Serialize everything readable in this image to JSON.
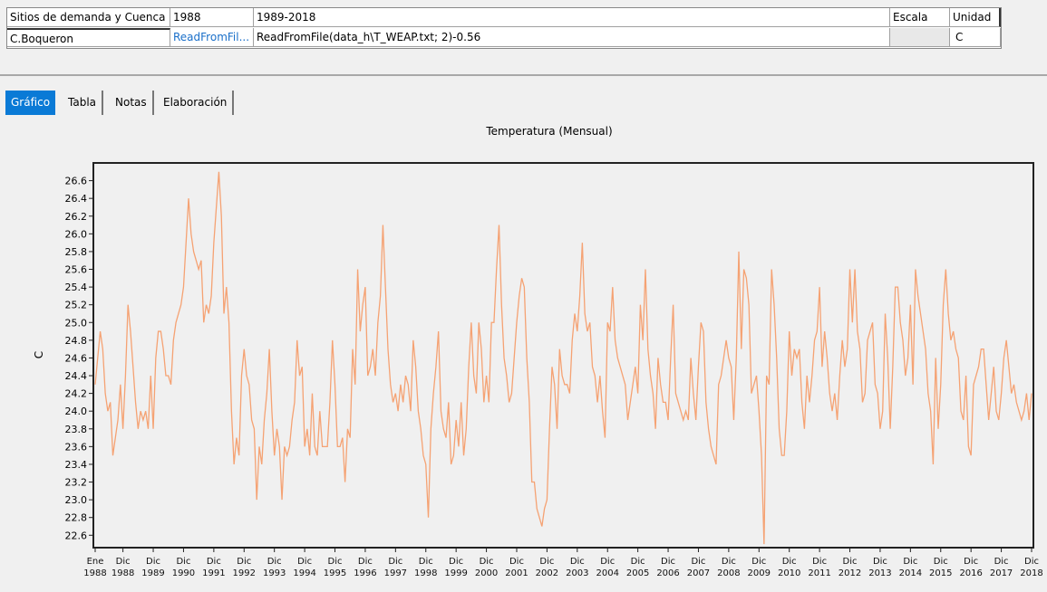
{
  "table": {
    "headers": [
      "Sitios de demanda y Cuenca",
      "1988",
      "1989-2018",
      "Escala",
      "Unidad"
    ],
    "row": {
      "name": "C.Boqueron",
      "link": "ReadFromFil...",
      "expression": "ReadFromFile(data_h\\T_WEAP.txt; 2)-0.56",
      "unit": "C"
    }
  },
  "tabs": [
    "Gráfico",
    "Tabla",
    "Notas",
    "Elaboración"
  ],
  "chart_data": {
    "type": "line",
    "title": "Temperatura (Mensual)",
    "ylabel": "C",
    "color": "#f5a273",
    "ylim": [
      22.46,
      26.8
    ],
    "yticks": [
      22.6,
      22.8,
      {
        "value": 23,
        "label": "23.0"
      },
      23.2,
      23.4,
      23.6,
      23.8,
      {
        "value": 24,
        "label": "24.0"
      },
      24.2,
      24.4,
      24.6,
      24.8,
      {
        "value": 25,
        "label": "25.0"
      },
      25.2,
      25.4,
      25.6,
      25.8,
      {
        "value": 26,
        "label": "26.0"
      },
      26.2,
      26.4,
      26.6
    ],
    "grid": false,
    "categories": [
      "Ene 1988",
      null,
      null,
      null,
      null,
      null,
      null,
      null,
      null,
      null,
      null,
      "Dic 1988",
      null,
      null,
      null,
      null,
      null,
      null,
      null,
      null,
      null,
      null,
      null,
      "Dic 1989",
      null,
      null,
      null,
      null,
      null,
      null,
      null,
      null,
      null,
      null,
      null,
      "Dic 1990",
      null,
      null,
      null,
      null,
      null,
      null,
      null,
      null,
      null,
      null,
      null,
      "Dic 1991",
      null,
      null,
      null,
      null,
      null,
      null,
      null,
      null,
      null,
      null,
      null,
      "Dic 1992",
      null,
      null,
      null,
      null,
      null,
      null,
      null,
      null,
      null,
      null,
      null,
      "Dic 1993",
      null,
      null,
      null,
      null,
      null,
      null,
      null,
      null,
      null,
      null,
      null,
      "Dic 1994",
      null,
      null,
      null,
      null,
      null,
      null,
      null,
      null,
      null,
      null,
      null,
      "Dic 1995",
      null,
      null,
      null,
      null,
      null,
      null,
      null,
      null,
      null,
      null,
      null,
      "Dic 1996",
      null,
      null,
      null,
      null,
      null,
      null,
      null,
      null,
      null,
      null,
      null,
      "Dic 1997",
      null,
      null,
      null,
      null,
      null,
      null,
      null,
      null,
      null,
      null,
      null,
      "Dic 1998",
      null,
      null,
      null,
      null,
      null,
      null,
      null,
      null,
      null,
      null,
      null,
      "Dic 1999",
      null,
      null,
      null,
      null,
      null,
      null,
      null,
      null,
      null,
      null,
      null,
      "Dic 2000",
      null,
      null,
      null,
      null,
      null,
      null,
      null,
      null,
      null,
      null,
      null,
      "Dic 2001",
      null,
      null,
      null,
      null,
      null,
      null,
      null,
      null,
      null,
      null,
      null,
      "Dic 2002",
      null,
      null,
      null,
      null,
      null,
      null,
      null,
      null,
      null,
      null,
      null,
      "Dic 2003",
      null,
      null,
      null,
      null,
      null,
      null,
      null,
      null,
      null,
      null,
      null,
      "Dic 2004",
      null,
      null,
      null,
      null,
      null,
      null,
      null,
      null,
      null,
      null,
      null,
      "Dic 2005",
      null,
      null,
      null,
      null,
      null,
      null,
      null,
      null,
      null,
      null,
      null,
      "Dic 2006",
      null,
      null,
      null,
      null,
      null,
      null,
      null,
      null,
      null,
      null,
      null,
      "Dic 2007",
      null,
      null,
      null,
      null,
      null,
      null,
      null,
      null,
      null,
      null,
      null,
      "Dic 2008",
      null,
      null,
      null,
      null,
      null,
      null,
      null,
      null,
      null,
      null,
      null,
      "Dic 2009",
      null,
      null,
      null,
      null,
      null,
      null,
      null,
      null,
      null,
      null,
      null,
      "Dic 2010",
      null,
      null,
      null,
      null,
      null,
      null,
      null,
      null,
      null,
      null,
      null,
      "Dic 2011",
      null,
      null,
      null,
      null,
      null,
      null,
      null,
      null,
      null,
      null,
      null,
      "Dic 2012",
      null,
      null,
      null,
      null,
      null,
      null,
      null,
      null,
      null,
      null,
      null,
      "Dic 2013",
      null,
      null,
      null,
      null,
      null,
      null,
      null,
      null,
      null,
      null,
      null,
      "Dic 2014",
      null,
      null,
      null,
      null,
      null,
      null,
      null,
      null,
      null,
      null,
      null,
      "Dic 2015",
      null,
      null,
      null,
      null,
      null,
      null,
      null,
      null,
      null,
      null,
      null,
      "Dic 2016",
      null,
      null,
      null,
      null,
      null,
      null,
      null,
      null,
      null,
      null,
      null,
      "Dic 2017",
      null,
      null,
      null,
      null,
      null,
      null,
      null,
      null,
      null,
      null,
      null,
      "Dic 2018"
    ],
    "values": [
      24.3,
      24.6,
      24.9,
      24.7,
      24.2,
      24.0,
      24.1,
      23.5,
      23.7,
      23.9,
      24.3,
      23.8,
      24.4,
      25.2,
      24.9,
      24.5,
      24.1,
      23.8,
      24.0,
      23.9,
      24.0,
      23.8,
      24.4,
      23.8,
      24.6,
      24.9,
      24.9,
      24.7,
      24.4,
      24.4,
      24.3,
      24.8,
      25.0,
      25.1,
      25.2,
      25.4,
      25.9,
      26.4,
      26.0,
      25.8,
      25.7,
      25.6,
      25.7,
      25.0,
      25.2,
      25.1,
      25.3,
      25.9,
      26.3,
      26.7,
      26.2,
      25.1,
      25.4,
      25.0,
      24.0,
      23.4,
      23.7,
      23.5,
      24.4,
      24.7,
      24.4,
      24.3,
      23.9,
      23.8,
      23.0,
      23.6,
      23.4,
      23.9,
      24.2,
      24.7,
      24.0,
      23.5,
      23.8,
      23.6,
      23.0,
      23.6,
      23.5,
      23.6,
      23.9,
      24.1,
      24.8,
      24.4,
      24.5,
      23.6,
      23.8,
      23.5,
      24.2,
      23.6,
      23.5,
      24.0,
      23.6,
      23.6,
      23.6,
      24.1,
      24.8,
      24.3,
      23.6,
      23.6,
      23.7,
      23.2,
      23.8,
      23.7,
      24.7,
      24.3,
      25.6,
      24.9,
      25.2,
      25.4,
      24.4,
      24.5,
      24.7,
      24.4,
      25.0,
      25.3,
      26.1,
      25.4,
      24.7,
      24.3,
      24.1,
      24.2,
      24.0,
      24.3,
      24.1,
      24.4,
      24.3,
      24.0,
      24.8,
      24.5,
      24.0,
      23.8,
      23.5,
      23.4,
      22.8,
      23.8,
      24.2,
      24.5,
      24.9,
      24.0,
      23.8,
      23.7,
      24.1,
      23.4,
      23.5,
      23.9,
      23.6,
      24.1,
      23.5,
      23.8,
      24.5,
      25.0,
      24.4,
      24.2,
      25.0,
      24.7,
      24.1,
      24.4,
      24.1,
      25.0,
      25.0,
      25.6,
      26.1,
      25.2,
      24.6,
      24.4,
      24.1,
      24.2,
      24.6,
      25.0,
      25.3,
      25.5,
      25.4,
      24.6,
      24.1,
      23.2,
      23.2,
      22.9,
      22.8,
      22.7,
      22.9,
      23.0,
      23.8,
      24.5,
      24.3,
      23.8,
      24.7,
      24.4,
      24.3,
      24.3,
      24.2,
      24.8,
      25.1,
      24.9,
      25.3,
      25.9,
      25.1,
      24.9,
      25.0,
      24.5,
      24.4,
      24.1,
      24.4,
      24.0,
      23.7,
      25.0,
      24.9,
      25.4,
      24.8,
      24.6,
      24.5,
      24.4,
      24.3,
      23.9,
      24.1,
      24.3,
      24.5,
      24.2,
      25.2,
      24.8,
      25.6,
      24.7,
      24.4,
      24.2,
      23.8,
      24.6,
      24.3,
      24.1,
      24.1,
      23.9,
      24.6,
      25.2,
      24.2,
      24.1,
      24.0,
      23.9,
      24.0,
      23.9,
      24.6,
      24.2,
      23.9,
      24.5,
      25.0,
      24.9,
      24.1,
      23.8,
      23.6,
      23.5,
      23.4,
      24.3,
      24.4,
      24.6,
      24.8,
      24.6,
      24.5,
      23.9,
      24.6,
      25.8,
      24.7,
      25.6,
      25.5,
      25.2,
      24.2,
      24.3,
      24.4,
      24.0,
      23.5,
      22.5,
      24.4,
      24.3,
      25.6,
      25.2,
      24.6,
      23.8,
      23.5,
      23.5,
      24.0,
      24.9,
      24.4,
      24.7,
      24.6,
      24.7,
      24.1,
      23.8,
      24.4,
      24.1,
      24.4,
      24.8,
      24.9,
      25.4,
      24.5,
      24.9,
      24.6,
      24.2,
      24.0,
      24.2,
      23.9,
      24.4,
      24.8,
      24.5,
      24.7,
      25.6,
      25.0,
      25.6,
      24.9,
      24.7,
      24.1,
      24.2,
      24.8,
      24.9,
      25.0,
      24.3,
      24.2,
      23.8,
      24.0,
      25.1,
      24.6,
      23.8,
      24.5,
      25.4,
      25.4,
      25.0,
      24.8,
      24.4,
      24.6,
      25.2,
      24.3,
      25.6,
      25.3,
      25.1,
      24.9,
      24.7,
      24.2,
      24.0,
      23.4,
      24.6,
      23.8,
      24.3,
      25.2,
      25.6,
      25.1,
      24.8,
      24.9,
      24.7,
      24.6,
      24.0,
      23.9,
      24.4,
      23.6,
      23.5,
      24.3,
      24.4,
      24.5,
      24.7,
      24.7,
      24.3,
      23.9,
      24.2,
      24.5,
      24.0,
      23.9,
      24.2,
      24.6,
      24.8,
      24.5,
      24.2,
      24.3,
      24.1,
      24.0,
      23.9,
      24.0,
      24.2,
      23.9,
      24.2
    ]
  }
}
